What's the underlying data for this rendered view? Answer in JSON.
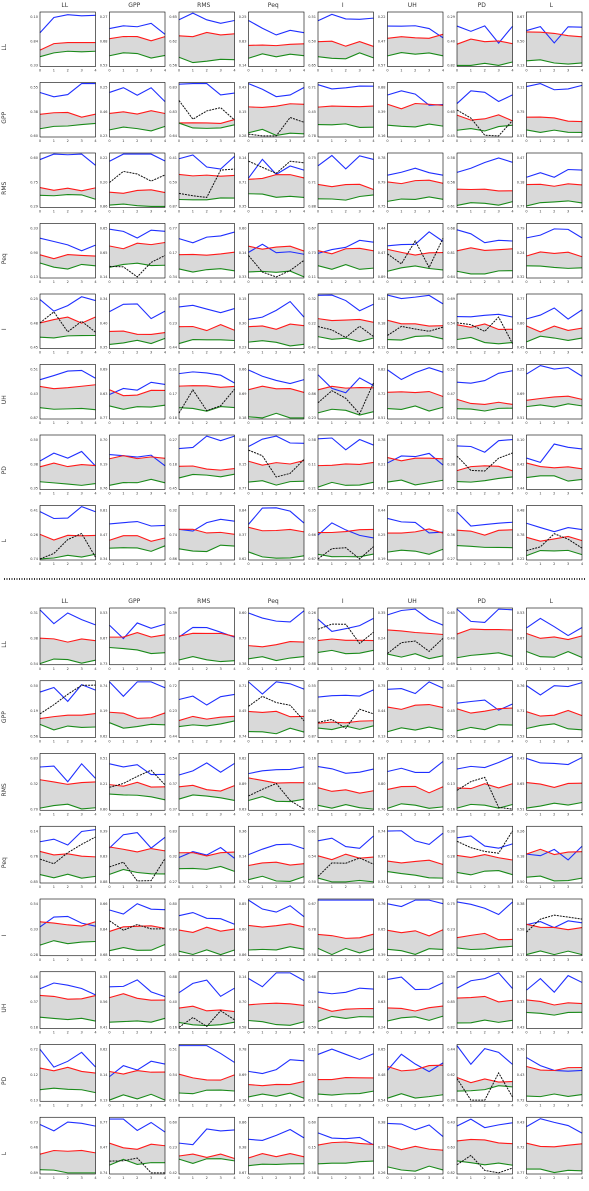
{
  "figure": {
    "colors": {
      "blue": "#1f2fff",
      "red": "#ff1a1a",
      "green": "#1a8a1a",
      "black": "#111111",
      "band": "#d9d9d9",
      "frame": "#000000"
    },
    "x_ticks": [
      "0",
      "1",
      "2",
      "3",
      "4"
    ]
  },
  "chart_data": [
    {
      "type": "line",
      "columns": [
        "LL",
        "GPP",
        "RMS",
        "Peq",
        "I",
        "UH",
        "PD",
        "L"
      ],
      "rows": [
        "LL",
        "GPP",
        "RMS",
        "Peq",
        "I",
        "UH",
        "PD",
        "L"
      ],
      "series_colors": [
        "blue",
        "red",
        "green",
        "black"
      ],
      "note_values": "small multiples: each panel shows blue / red / green (and sometimes black dashed) lines over a grey band; values estimated, normalized 0-1",
      "sample_panel": {
        "x": [
          0,
          1,
          2,
          3,
          4
        ],
        "series": [
          {
            "values": [
              0.62,
              0.9,
              0.95,
              0.93,
              0.94
            ]
          },
          {
            "values": [
              0.3,
              0.42,
              0.44,
              0.44,
              0.44
            ]
          },
          {
            "values": [
              0.18,
              0.25,
              0.28,
              0.27,
              0.28
            ]
          }
        ]
      }
    },
    {
      "type": "line",
      "columns": [
        "LL",
        "GPP",
        "RMS",
        "Peq",
        "I",
        "UH",
        "PD",
        "L"
      ],
      "rows": [
        "LL",
        "GPP",
        "RMS",
        "Peq",
        "I",
        "UH",
        "PD",
        "L"
      ],
      "series_colors": [
        "blue",
        "red",
        "green",
        "black"
      ]
    }
  ]
}
